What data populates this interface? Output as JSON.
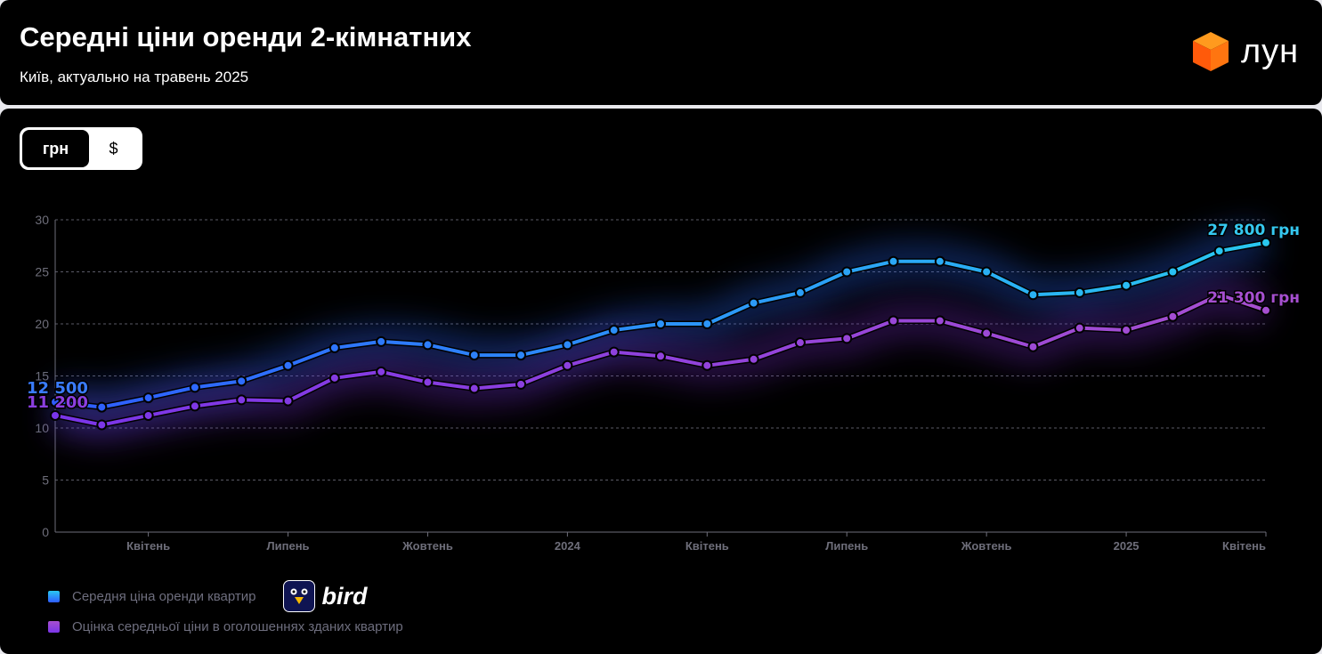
{
  "header": {
    "title": "Середні ціни оренди 2-кімнатних",
    "subtitle": "Київ, актуально на травень 2025",
    "logo_text": "лун"
  },
  "currency_toggle": {
    "options": [
      "грн",
      "$"
    ],
    "selected": "грн"
  },
  "legend": {
    "items": [
      {
        "label": "Середня ціна оренди квартир",
        "color": "#2a8cf5"
      },
      {
        "label": "Оцінка середньої ціни в оголошеннях зданих квартир",
        "color": "#8b3fe0"
      }
    ],
    "partner_logo": "bird"
  },
  "colors": {
    "blue_start": "#2f5cff",
    "blue_end": "#29c8f0",
    "purple_start": "#7a35e8",
    "purple_end": "#a64fd0"
  },
  "chart_data": {
    "type": "line",
    "ylim": [
      0,
      30
    ],
    "yticks": [
      0,
      5,
      10,
      15,
      20,
      25,
      30
    ],
    "grid": "horizontal dashed",
    "x": [
      "2023-02",
      "2023-03",
      "2023-04",
      "2023-05",
      "2023-06",
      "2023-07",
      "2023-08",
      "2023-09",
      "2023-10",
      "2023-11",
      "2023-12",
      "2024-01",
      "2024-02",
      "2024-03",
      "2024-04",
      "2024-05",
      "2024-06",
      "2024-07",
      "2024-08",
      "2024-09",
      "2024-10",
      "2024-11",
      "2024-12",
      "2025-01",
      "2025-02",
      "2025-03",
      "2025-04"
    ],
    "xtick_labels": [
      {
        "index": 2,
        "label": "Квітень"
      },
      {
        "index": 5,
        "label": "Липень"
      },
      {
        "index": 8,
        "label": "Жовтень"
      },
      {
        "index": 11,
        "label": "2024"
      },
      {
        "index": 14,
        "label": "Квітень"
      },
      {
        "index": 17,
        "label": "Липень"
      },
      {
        "index": 20,
        "label": "Жовтень"
      },
      {
        "index": 23,
        "label": "2025"
      },
      {
        "index": 26,
        "label": "Квітень"
      }
    ],
    "series": [
      {
        "name": "Середня ціна оренди квартир",
        "values": [
          12.5,
          12.0,
          12.9,
          13.9,
          14.5,
          16.0,
          17.7,
          18.3,
          18.0,
          17.0,
          17.0,
          18.0,
          19.4,
          20.0,
          20.0,
          22.0,
          23.0,
          25.0,
          26.0,
          26.0,
          25.0,
          22.8,
          23.0,
          23.7,
          25.0,
          27.0,
          27.8
        ],
        "start_label": "12 500",
        "end_label": "27 800 грн"
      },
      {
        "name": "Оцінка середньої ціни в оголошеннях зданих квартир",
        "values": [
          11.2,
          10.3,
          11.2,
          12.1,
          12.7,
          12.6,
          14.8,
          15.4,
          14.4,
          13.8,
          14.2,
          16.0,
          17.3,
          16.9,
          16.0,
          16.6,
          18.2,
          18.6,
          20.3,
          20.3,
          19.1,
          17.8,
          19.6,
          19.4,
          20.7,
          22.8,
          21.3
        ],
        "start_label": "11 200",
        "end_label": "21 300 грн"
      }
    ]
  }
}
